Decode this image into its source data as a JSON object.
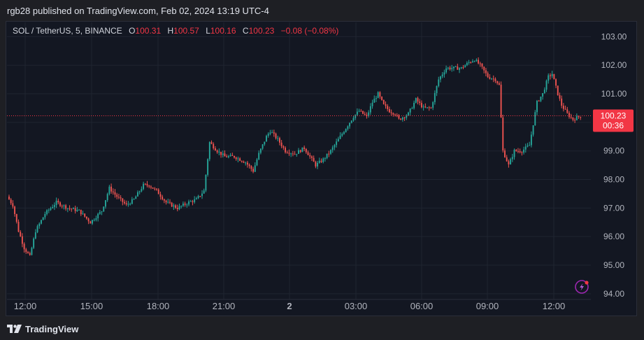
{
  "header": {
    "published": "rgb28 published on TradingView.com, Feb 02, 2024 13:19 UTC-4"
  },
  "legend": {
    "symbol": "SOL / TetherUS, 5, BINANCE",
    "o_label": "O",
    "o_value": "100.31",
    "h_label": "H",
    "h_value": "100.57",
    "l_label": "L",
    "l_value": "100.16",
    "c_label": "C",
    "c_value": "100.23",
    "change": "−0.08 (−0.08%)"
  },
  "price_tag": {
    "price": "100.23",
    "countdown": "00:36"
  },
  "footer": {
    "brand": "TradingView"
  },
  "colors": {
    "up": "#26a69a",
    "down": "#ef5350",
    "background": "#131722",
    "grid": "#1f2430",
    "tag": "#f23645"
  },
  "icons": {
    "logo": "tradingview-logo-icon",
    "alert": "lightning-alert-icon"
  },
  "chart_data": {
    "type": "candlestick",
    "y_ticks": [
      "103.00",
      "102.00",
      "101.00",
      "100.00",
      "99.00",
      "98.00",
      "97.00",
      "96.00",
      "95.00",
      "94.00"
    ],
    "x_ticks": [
      "12:00",
      "15:00",
      "18:00",
      "21:00",
      "2",
      "03:00",
      "06:00",
      "09:00",
      "12:00"
    ],
    "ylim": [
      93.8,
      103.5
    ],
    "last_price": 100.23,
    "anchors": [
      [
        0,
        97.4
      ],
      [
        3,
        97.1
      ],
      [
        6,
        96.2
      ],
      [
        9,
        95.6
      ],
      [
        12,
        95.3
      ],
      [
        15,
        96.2
      ],
      [
        20,
        96.8
      ],
      [
        26,
        97.2
      ],
      [
        32,
        97.0
      ],
      [
        38,
        96.9
      ],
      [
        44,
        96.5
      ],
      [
        50,
        96.9
      ],
      [
        54,
        97.7
      ],
      [
        58,
        97.4
      ],
      [
        63,
        97.1
      ],
      [
        67,
        97.3
      ],
      [
        72,
        97.8
      ],
      [
        75,
        97.8
      ],
      [
        79,
        97.6
      ],
      [
        84,
        97.2
      ],
      [
        90,
        97.0
      ],
      [
        96,
        97.2
      ],
      [
        100,
        97.3
      ],
      [
        104,
        97.6
      ],
      [
        107,
        99.3
      ],
      [
        111,
        99.0
      ],
      [
        115,
        98.8
      ],
      [
        120,
        98.8
      ],
      [
        126,
        98.6
      ],
      [
        130,
        98.3
      ],
      [
        133,
        98.9
      ],
      [
        137,
        99.5
      ],
      [
        139,
        99.7
      ],
      [
        143,
        99.4
      ],
      [
        147,
        99.0
      ],
      [
        152,
        98.9
      ],
      [
        157,
        99.1
      ],
      [
        160,
        98.8
      ],
      [
        163,
        98.5
      ],
      [
        167,
        98.7
      ],
      [
        171,
        99.0
      ],
      [
        176,
        99.5
      ],
      [
        180,
        99.9
      ],
      [
        183,
        100.2
      ],
      [
        186,
        100.4
      ],
      [
        190,
        100.2
      ],
      [
        193,
        100.7
      ],
      [
        196,
        101.0
      ],
      [
        199,
        100.6
      ],
      [
        202,
        100.4
      ],
      [
        205,
        100.3
      ],
      [
        207,
        100.1
      ],
      [
        212,
        100.3
      ],
      [
        216,
        100.8
      ],
      [
        220,
        100.5
      ],
      [
        224,
        100.5
      ],
      [
        228,
        101.5
      ],
      [
        232,
        101.9
      ],
      [
        236,
        101.9
      ],
      [
        240,
        101.9
      ],
      [
        244,
        102.1
      ],
      [
        247,
        102.2
      ],
      [
        250,
        102.0
      ],
      [
        254,
        101.6
      ],
      [
        258,
        101.5
      ],
      [
        260,
        101.3
      ],
      [
        262,
        99.0
      ],
      [
        265,
        98.5
      ],
      [
        268,
        99.0
      ],
      [
        272,
        99.0
      ],
      [
        276,
        99.2
      ],
      [
        280,
        100.7
      ],
      [
        283,
        101.0
      ],
      [
        286,
        101.6
      ],
      [
        288,
        101.7
      ],
      [
        291,
        101.0
      ],
      [
        293,
        100.6
      ],
      [
        296,
        100.3
      ],
      [
        299,
        100.1
      ],
      [
        303,
        100.23
      ]
    ],
    "bars": 303
  }
}
